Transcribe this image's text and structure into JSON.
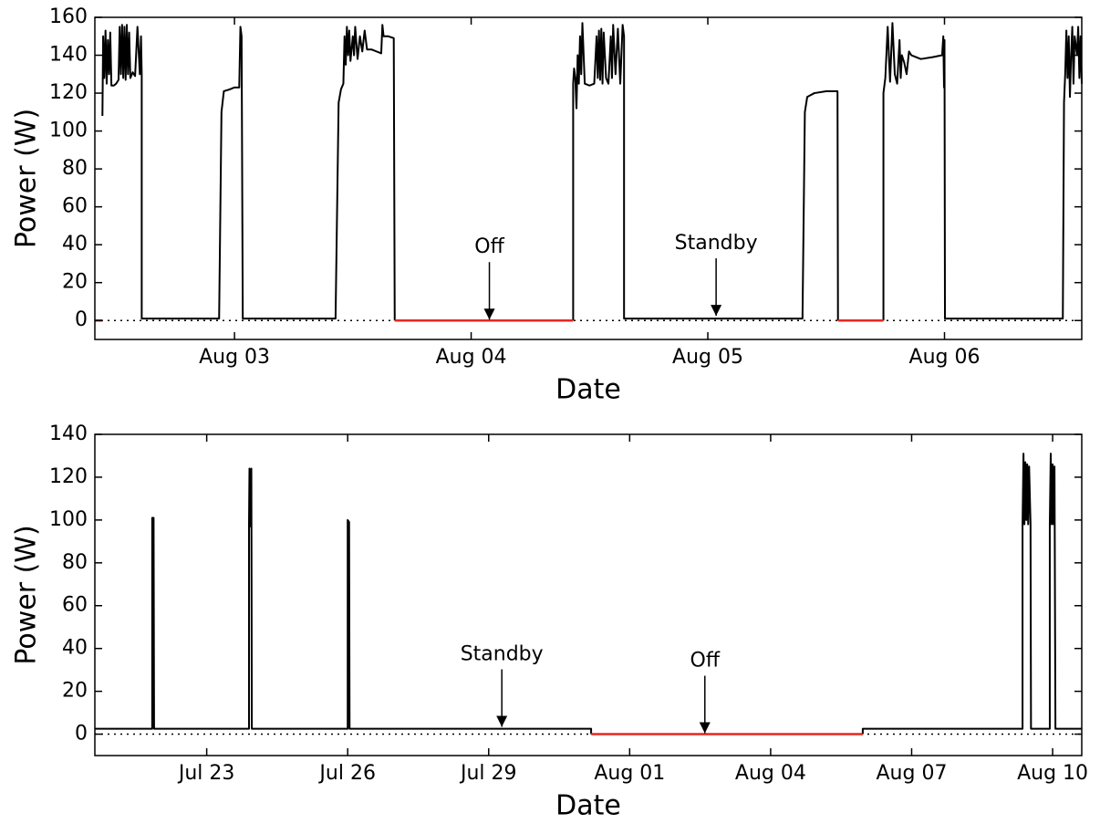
{
  "chart_data": [
    {
      "type": "line",
      "xlabel": "Date",
      "ylabel": "Power (W)",
      "xlim": [
        2.41,
        6.58
      ],
      "ylim": [
        -10,
        160
      ],
      "xticks": [
        {
          "value": 3,
          "label": "Aug 03"
        },
        {
          "value": 4,
          "label": "Aug 04"
        },
        {
          "value": 5,
          "label": "Aug 05"
        },
        {
          "value": 6,
          "label": "Aug 06"
        }
      ],
      "yticks": [
        0,
        20,
        40,
        60,
        80,
        100,
        120,
        140,
        160
      ],
      "reference_line": {
        "value": 0,
        "style": "dotted"
      },
      "series": [
        {
          "color": "#000000",
          "x": [
            2.442,
            2.445,
            2.45,
            2.455,
            2.46,
            2.465,
            2.47,
            2.475,
            2.48,
            2.49,
            2.5,
            2.51,
            2.515,
            2.52,
            2.525,
            2.53,
            2.535,
            2.54,
            2.545,
            2.55,
            2.555,
            2.56,
            2.57,
            2.58,
            2.59,
            2.6,
            2.605,
            2.608,
            2.608,
            2.935,
            2.945,
            2.955,
            2.98,
            3.0,
            3.02,
            3.025,
            3.03,
            3.035,
            3.427,
            3.44,
            3.45,
            3.46,
            3.465,
            3.47,
            3.475,
            3.48,
            3.485,
            3.49,
            3.5,
            3.505,
            3.51,
            3.52,
            3.53,
            3.54,
            3.55,
            3.56,
            3.58,
            3.6,
            3.62,
            3.625,
            3.63,
            3.65,
            3.673,
            3.677,
            3.677,
            4.431,
            4.431,
            4.435,
            4.44,
            4.445,
            4.45,
            4.455,
            4.46,
            4.465,
            4.47,
            4.48,
            4.5,
            4.52,
            4.53,
            4.535,
            4.54,
            4.545,
            4.55,
            4.555,
            4.56,
            4.57,
            4.58,
            4.59,
            4.595,
            4.6,
            4.61,
            4.62,
            4.63,
            4.64,
            4.646,
            4.646,
            5.4,
            5.41,
            5.42,
            5.45,
            5.5,
            5.548,
            5.55,
            5.55,
            5.742,
            5.742,
            5.75,
            5.76,
            5.77,
            5.78,
            5.79,
            5.8,
            5.81,
            5.815,
            5.82,
            5.83,
            5.84,
            5.85,
            5.86,
            5.9,
            5.95,
            5.99,
            5.995,
            5.998,
            6.0,
            6.002,
            6.5,
            6.505,
            6.51,
            6.515,
            6.52,
            6.525,
            6.53,
            6.535,
            6.54,
            6.545,
            6.55,
            6.56,
            6.565,
            6.57,
            6.575,
            6.58
          ],
          "values": [
            108,
            150,
            128,
            153,
            125,
            148,
            130,
            152,
            124,
            124,
            125,
            127,
            155,
            130,
            156,
            128,
            155,
            127,
            156,
            130,
            152,
            128,
            131,
            129,
            155,
            130,
            150,
            130,
            1,
            1,
            110,
            121,
            122,
            123,
            123,
            155,
            150,
            1,
            1,
            115,
            122,
            125,
            150,
            135,
            155,
            140,
            153,
            137,
            150,
            140,
            155,
            138,
            150,
            142,
            153,
            143,
            143,
            142,
            141,
            156,
            150,
            150,
            149,
            0,
            null,
            0,
            125,
            133,
            128,
            112,
            140,
            125,
            150,
            130,
            157,
            125,
            124,
            125,
            150,
            128,
            153,
            127,
            154,
            125,
            152,
            128,
            125,
            150,
            128,
            156,
            130,
            154,
            125,
            156,
            150,
            1,
            1,
            110,
            118,
            120,
            121,
            121,
            0,
            null,
            0,
            120,
            128,
            155,
            126,
            157,
            130,
            125,
            148,
            128,
            140,
            136,
            130,
            142,
            140,
            138,
            139,
            140,
            150,
            123,
            148,
            1,
            1,
            115,
            130,
            153,
            128,
            150,
            118,
            140,
            155,
            125,
            150,
            140,
            155,
            128,
            150,
            125
          ]
        },
        {
          "color": "#e8251f",
          "x": [
            2.41,
            2.442,
            2.442,
            3.677,
            4.431,
            4.431,
            5.55,
            5.742
          ],
          "values": [
            0,
            0,
            null,
            0,
            0,
            null,
            0,
            0
          ]
        }
      ],
      "annotations": [
        {
          "text": "Off",
          "x": 4.077,
          "y": 0
        },
        {
          "text": "Standby",
          "x": 5.035,
          "y": 2
        }
      ]
    },
    {
      "type": "line",
      "xlabel": "Date",
      "ylabel": "Power (W)",
      "xlim": [
        20.62,
        41.62
      ],
      "ylim": [
        -10,
        140
      ],
      "xticks": [
        {
          "value": 23,
          "label": "Jul 23"
        },
        {
          "value": 26,
          "label": "Jul 26"
        },
        {
          "value": 29,
          "label": "Jul 29"
        },
        {
          "value": 32,
          "label": "Aug 01"
        },
        {
          "value": 35,
          "label": "Aug 04"
        },
        {
          "value": 38,
          "label": "Aug 07"
        },
        {
          "value": 41,
          "label": "Aug 10"
        }
      ],
      "yticks": [
        0,
        20,
        40,
        60,
        80,
        100,
        120,
        140
      ],
      "reference_line": {
        "value": 0,
        "style": "dotted"
      },
      "series": [
        {
          "color": "#000000",
          "x": [
            20.62,
            21.84,
            21.84,
            21.87,
            21.88,
            23.9,
            23.9,
            23.91,
            23.92,
            23.93,
            23.94,
            23.95,
            23.96,
            26.0,
            26.0,
            26.03,
            26.04,
            31.18,
            31.18,
            31.18,
            36.96,
            36.96,
            40.36,
            40.36,
            40.38,
            40.4,
            40.42,
            40.44,
            40.46,
            40.48,
            40.5,
            40.53,
            40.54,
            40.94,
            40.94,
            40.96,
            40.98,
            41.0,
            41.02,
            41.04,
            41.06,
            41.62
          ],
          "values": [
            2.5,
            2.5,
            101,
            101,
            2.5,
            2.5,
            98,
            124,
            97,
            123,
            100,
            124,
            2.5,
            2.5,
            100,
            99,
            2.5,
            2.5,
            0,
            null,
            0,
            2.5,
            2.5,
            98,
            131,
            98,
            127,
            100,
            126,
            98,
            125,
            98,
            2.5,
            2.5,
            98,
            131,
            98,
            126,
            98,
            125,
            2.5,
            2.5
          ]
        },
        {
          "color": "#e8251f",
          "x": [
            31.18,
            36.96
          ],
          "values": [
            0,
            0
          ]
        }
      ],
      "annotations": [
        {
          "text": "Standby",
          "x": 29.28,
          "y": 3
        },
        {
          "text": "Off",
          "x": 33.6,
          "y": 0
        }
      ]
    }
  ]
}
